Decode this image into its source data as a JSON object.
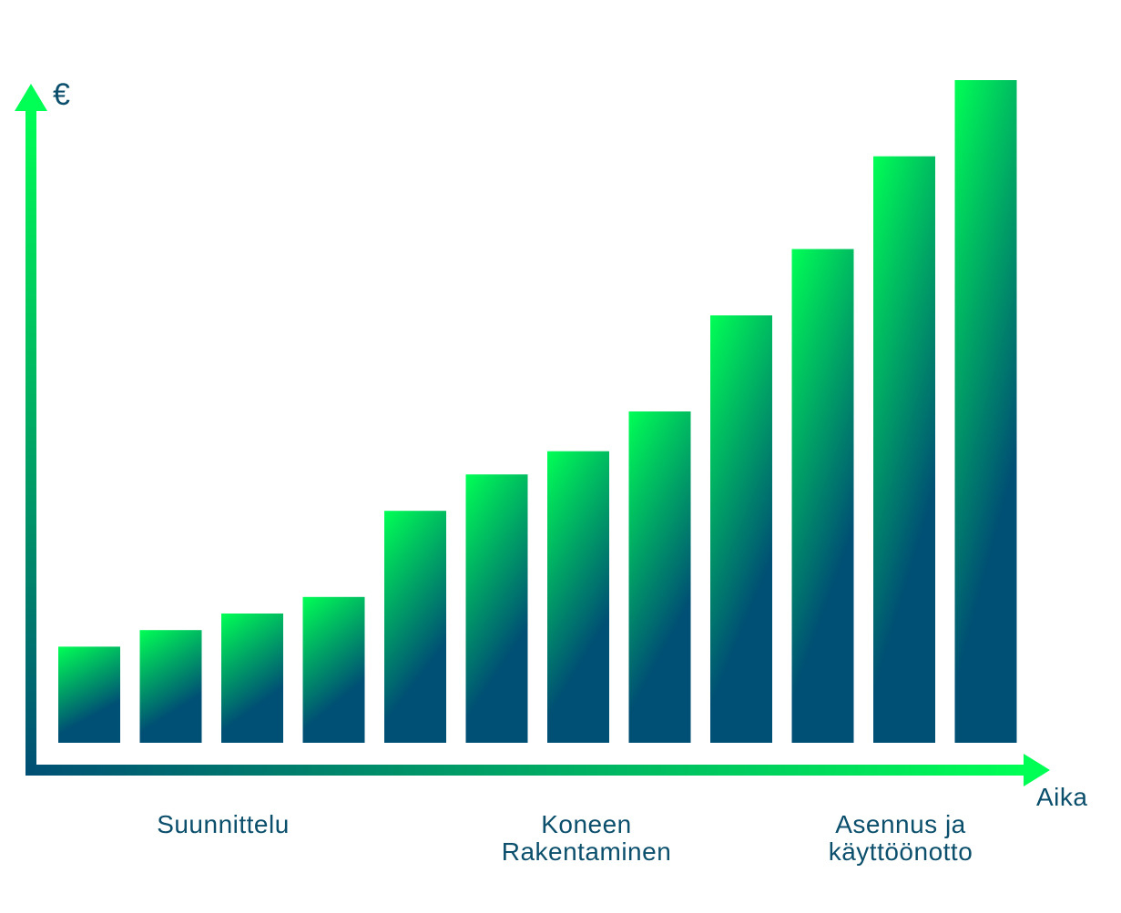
{
  "chart_data": {
    "type": "bar",
    "title": "",
    "ylabel": "€",
    "xlabel": "Aika",
    "values": [
      14.5,
      17,
      19.5,
      22,
      35,
      40.5,
      44,
      50,
      64.5,
      74.5,
      88.5,
      100
    ],
    "ylim": [
      0,
      100
    ],
    "grid": false,
    "phases": [
      {
        "lines": [
          "Suunnittelu"
        ]
      },
      {
        "lines": [
          "Koneen",
          "Rakentaminen"
        ]
      },
      {
        "lines": [
          "Asennus ja",
          "käyttöönotto"
        ]
      }
    ]
  },
  "colors": {
    "bar_top": "#00ff55",
    "bar_bottom": "#004f74",
    "axis_start": "#004f74",
    "axis_end": "#00ff55",
    "text": "#0b4f6c"
  }
}
